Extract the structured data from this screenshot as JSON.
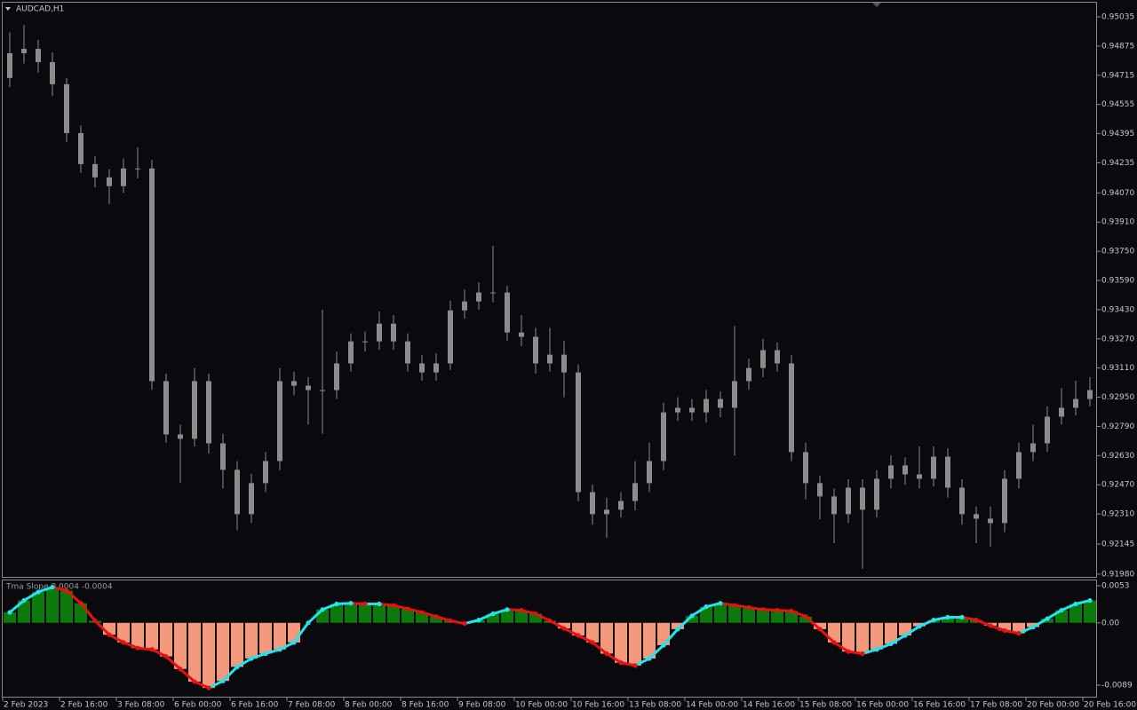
{
  "chart_data": [
    {
      "type": "candlestick",
      "title": "AUDCAD,H1",
      "color": "#8c8c8c",
      "open": [
        0.947,
        0.94836,
        0.9486,
        0.94787,
        0.94666,
        0.94398,
        0.94228,
        0.94155,
        0.94107,
        0.94204,
        0.94204,
        0.93038,
        0.92746,
        0.92722,
        0.93038,
        0.92697,
        0.92552,
        0.92309,
        0.92479,
        0.926,
        0.93038,
        0.93013,
        0.92989,
        0.92989,
        0.93135,
        0.93256,
        0.93256,
        0.93353,
        0.93256,
        0.93135,
        0.93086,
        0.93135,
        0.93426,
        0.93475,
        0.93524,
        0.93524,
        0.93305,
        0.93281,
        0.93135,
        0.93183,
        0.93086,
        0.9243,
        0.92309,
        0.92333,
        0.92381,
        0.92479,
        0.926,
        0.92867,
        0.92892,
        0.92867,
        0.9294,
        0.92892,
        0.93038,
        0.9311,
        0.93208,
        0.93135,
        0.92649,
        0.92479,
        0.92406,
        0.92309,
        0.92454,
        0.92333,
        0.92503,
        0.92576,
        0.92527,
        0.92503,
        0.92624,
        0.92454,
        0.92309,
        0.92284,
        0.9226,
        0.92503,
        0.92649,
        0.92697,
        0.92843,
        0.92892,
        0.9294
      ],
      "high": [
        0.9495,
        0.9499,
        0.9491,
        0.9484,
        0.947,
        0.9444,
        0.9427,
        0.942,
        0.9426,
        0.9432,
        0.9425,
        0.9308,
        0.928,
        0.9311,
        0.9308,
        0.9275,
        0.926,
        0.9253,
        0.9265,
        0.9311,
        0.9309,
        0.9306,
        0.9343,
        0.932,
        0.933,
        0.9331,
        0.9342,
        0.934,
        0.933,
        0.9318,
        0.9319,
        0.9348,
        0.9354,
        0.9358,
        0.9378,
        0.9356,
        0.934,
        0.9333,
        0.9333,
        0.9326,
        0.9313,
        0.9247,
        0.924,
        0.9243,
        0.926,
        0.927,
        0.9292,
        0.9295,
        0.9294,
        0.9299,
        0.9298,
        0.9334,
        0.9316,
        0.9327,
        0.9325,
        0.9318,
        0.927,
        0.9252,
        0.9245,
        0.925,
        0.925,
        0.9255,
        0.9263,
        0.9262,
        0.9268,
        0.9268,
        0.9267,
        0.925,
        0.9235,
        0.9235,
        0.9255,
        0.927,
        0.928,
        0.929,
        0.93,
        0.9304,
        0.9306
      ],
      "low": [
        0.9465,
        0.9478,
        0.9473,
        0.946,
        0.9435,
        0.9418,
        0.941,
        0.9401,
        0.9407,
        0.9415,
        0.9299,
        0.927,
        0.9248,
        0.9268,
        0.9264,
        0.9245,
        0.9222,
        0.9226,
        0.9243,
        0.9255,
        0.9296,
        0.928,
        0.9275,
        0.9294,
        0.9309,
        0.932,
        0.9321,
        0.9321,
        0.9309,
        0.9304,
        0.9304,
        0.931,
        0.9338,
        0.9343,
        0.9347,
        0.9326,
        0.9323,
        0.9308,
        0.9309,
        0.9295,
        0.9238,
        0.9225,
        0.9218,
        0.9229,
        0.9233,
        0.9243,
        0.9255,
        0.9282,
        0.9282,
        0.9281,
        0.9284,
        0.9263,
        0.9299,
        0.9306,
        0.9309,
        0.926,
        0.9239,
        0.9228,
        0.9215,
        0.9226,
        0.9201,
        0.9229,
        0.9245,
        0.9247,
        0.9245,
        0.9246,
        0.924,
        0.9225,
        0.9215,
        0.9213,
        0.9221,
        0.9245,
        0.926,
        0.9265,
        0.928,
        0.9285,
        0.929
      ],
      "close": [
        0.94836,
        0.9486,
        0.94787,
        0.94666,
        0.94398,
        0.94228,
        0.94155,
        0.94107,
        0.94204,
        0.94204,
        0.93038,
        0.92746,
        0.92722,
        0.93038,
        0.92697,
        0.92552,
        0.92309,
        0.92479,
        0.926,
        0.93038,
        0.93013,
        0.92989,
        0.92989,
        0.93135,
        0.93256,
        0.93256,
        0.93353,
        0.93256,
        0.93135,
        0.93086,
        0.93135,
        0.93426,
        0.93475,
        0.93524,
        0.93524,
        0.93305,
        0.93281,
        0.93135,
        0.93183,
        0.93086,
        0.9243,
        0.92309,
        0.92333,
        0.92381,
        0.92479,
        0.926,
        0.92867,
        0.92892,
        0.92867,
        0.9294,
        0.92892,
        0.93038,
        0.9311,
        0.93208,
        0.93135,
        0.92649,
        0.92479,
        0.92406,
        0.92309,
        0.92454,
        0.92333,
        0.92503,
        0.92576,
        0.92527,
        0.92503,
        0.92624,
        0.92454,
        0.92309,
        0.92284,
        0.9226,
        0.92503,
        0.92649,
        0.92697,
        0.92843,
        0.92892,
        0.9294,
        0.92989
      ],
      "xlim": [
        0,
        77
      ],
      "ylim": [
        0.91965,
        0.95113
      ],
      "yticks": [
        0.95035,
        0.94875,
        0.94715,
        0.94555,
        0.94395,
        0.94235,
        {
          "value": 0.9407,
          "label": "0.94070"
        },
        {
          "value": 0.9391,
          "label": "0.93910"
        },
        {
          "value": 0.9375,
          "label": "0.93750"
        },
        {
          "value": 0.9359,
          "label": "0.93590"
        },
        {
          "value": 0.9343,
          "label": "0.93430"
        },
        {
          "value": 0.9327,
          "label": "0.93270"
        },
        {
          "value": 0.9311,
          "label": "0.93110"
        },
        {
          "value": 0.9295,
          "label": "0.92950"
        },
        {
          "value": 0.9279,
          "label": "0.92790"
        },
        {
          "value": 0.9263,
          "label": "0.92630"
        },
        {
          "value": 0.9247,
          "label": "0.92470"
        },
        {
          "value": 0.9231,
          "label": "0.92310"
        },
        0.92145,
        {
          "value": 0.9198,
          "label": "0.91980"
        }
      ]
    },
    {
      "type": "bar",
      "title": "Tma Slope 0.0004 -0.0004",
      "values": [
        0.0015,
        0.0032,
        0.0044,
        0.0051,
        0.0046,
        0.0028,
        0.0003,
        -0.0017,
        -0.0028,
        -0.0036,
        -0.0038,
        -0.0048,
        -0.0066,
        -0.0084,
        -0.0093,
        -0.0083,
        -0.0063,
        -0.0051,
        -0.0044,
        -0.0038,
        -0.0028,
        0,
        0.0019,
        0.0027,
        0.0028,
        0.0027,
        0.0027,
        0.0025,
        0.002,
        0.0015,
        0.0009,
        0.0003,
        -0.0001,
        0.0004,
        0.0013,
        0.0019,
        0.0018,
        0.0013,
        0.0003,
        -0.0008,
        -0.0018,
        -0.0028,
        -0.0044,
        -0.0057,
        -0.0061,
        -0.0051,
        -0.0032,
        -0.0009,
        0.001,
        0.0023,
        0.0028,
        0.0025,
        0.0022,
        0.0019,
        0.0018,
        0.0017,
        0.0009,
        -0.0009,
        -0.0028,
        -0.0041,
        -0.0044,
        -0.0038,
        -0.003,
        -0.0018,
        -0.0005,
        0.0004,
        0.0008,
        0.0008,
        0.0004,
        -0.0004,
        -0.0011,
        -0.0015,
        -0.0006,
        0.0006,
        0.0018,
        0.0027,
        0.0032
      ],
      "positive_color": "#0b7a0b",
      "negative_color": "#f4977a",
      "rise_color": "#22e4f0",
      "fall_color": "#e81010",
      "xlim": [
        0,
        77
      ],
      "xticks": [
        {
          "value": 0,
          "label": "2 Feb 2023"
        },
        {
          "value": 4,
          "label": "2 Feb 16:00"
        },
        {
          "value": 8,
          "label": "3 Feb 08:00"
        },
        {
          "value": 12,
          "label": "6 Feb 00:00"
        },
        {
          "value": 16,
          "label": "6 Feb 16:00"
        },
        {
          "value": 20,
          "label": "7 Feb 08:00"
        },
        {
          "value": 24,
          "label": "8 Feb 00:00"
        },
        {
          "value": 28,
          "label": "8 Feb 16:00"
        },
        {
          "value": 32,
          "label": "9 Feb 08:00"
        },
        {
          "value": 36,
          "label": "10 Feb 00:00"
        },
        {
          "value": 40,
          "label": "10 Feb 16:00"
        },
        {
          "value": 44,
          "label": "13 Feb 08:00"
        },
        {
          "value": 48,
          "label": "14 Feb 00:00"
        },
        {
          "value": 52,
          "label": "14 Feb 16:00"
        },
        {
          "value": 56,
          "label": "15 Feb 08:00"
        },
        {
          "value": 60,
          "label": "16 Feb 00:00"
        },
        {
          "value": 64,
          "label": "16 Feb 16:00"
        },
        {
          "value": 68,
          "label": "17 Feb 08:00"
        },
        {
          "value": 72,
          "label": "20 Feb 00:00"
        },
        {
          "value": 76,
          "label": "20 Feb 16:00"
        }
      ],
      "ylim": [
        -0.01055,
        0.00606
      ],
      "yticks": [
        0.0053,
        {
          "value": 0,
          "label": "0.00"
        },
        -0.0089
      ]
    }
  ]
}
